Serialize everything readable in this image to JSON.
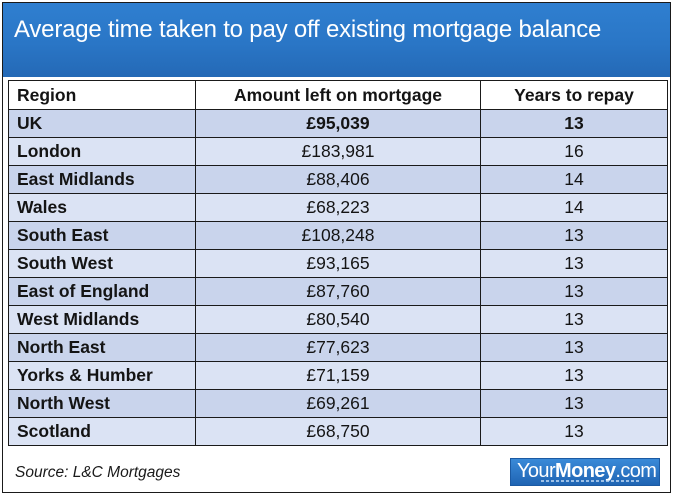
{
  "chart_data": {
    "type": "table",
    "title": "Average time taken to pay off existing mortgage balance",
    "columns": [
      "Region",
      "Amount left on mortgage",
      "Years to repay"
    ],
    "rows": [
      {
        "region": "UK",
        "amount": "£95,039",
        "years": "13"
      },
      {
        "region": "London",
        "amount": "£183,981",
        "years": "16"
      },
      {
        "region": "East Midlands",
        "amount": "£88,406",
        "years": "14"
      },
      {
        "region": "Wales",
        "amount": "£68,223",
        "years": "14"
      },
      {
        "region": "South East",
        "amount": "£108,248",
        "years": "13"
      },
      {
        "region": "South West",
        "amount": "£93,165",
        "years": "13"
      },
      {
        "region": "East of England",
        "amount": "£87,760",
        "years": "13"
      },
      {
        "region": "West Midlands",
        "amount": "£80,540",
        "years": "13"
      },
      {
        "region": "North East",
        "amount": "£77,623",
        "years": "13"
      },
      {
        "region": "Yorks & Humber",
        "amount": "£71,159",
        "years": "13"
      },
      {
        "region": "North West",
        "amount": "£69,261",
        "years": "13"
      },
      {
        "region": "Scotland",
        "amount": "£68,750",
        "years": "13"
      }
    ],
    "source": "Source: L&C Mortgages"
  },
  "logo": {
    "light": "Your",
    "bold": "Money",
    "suffix": ".com"
  },
  "colors": {
    "header_blue": "#2a76c6",
    "row_dark": "#c9d4ec",
    "row_light": "#dbe3f4"
  }
}
